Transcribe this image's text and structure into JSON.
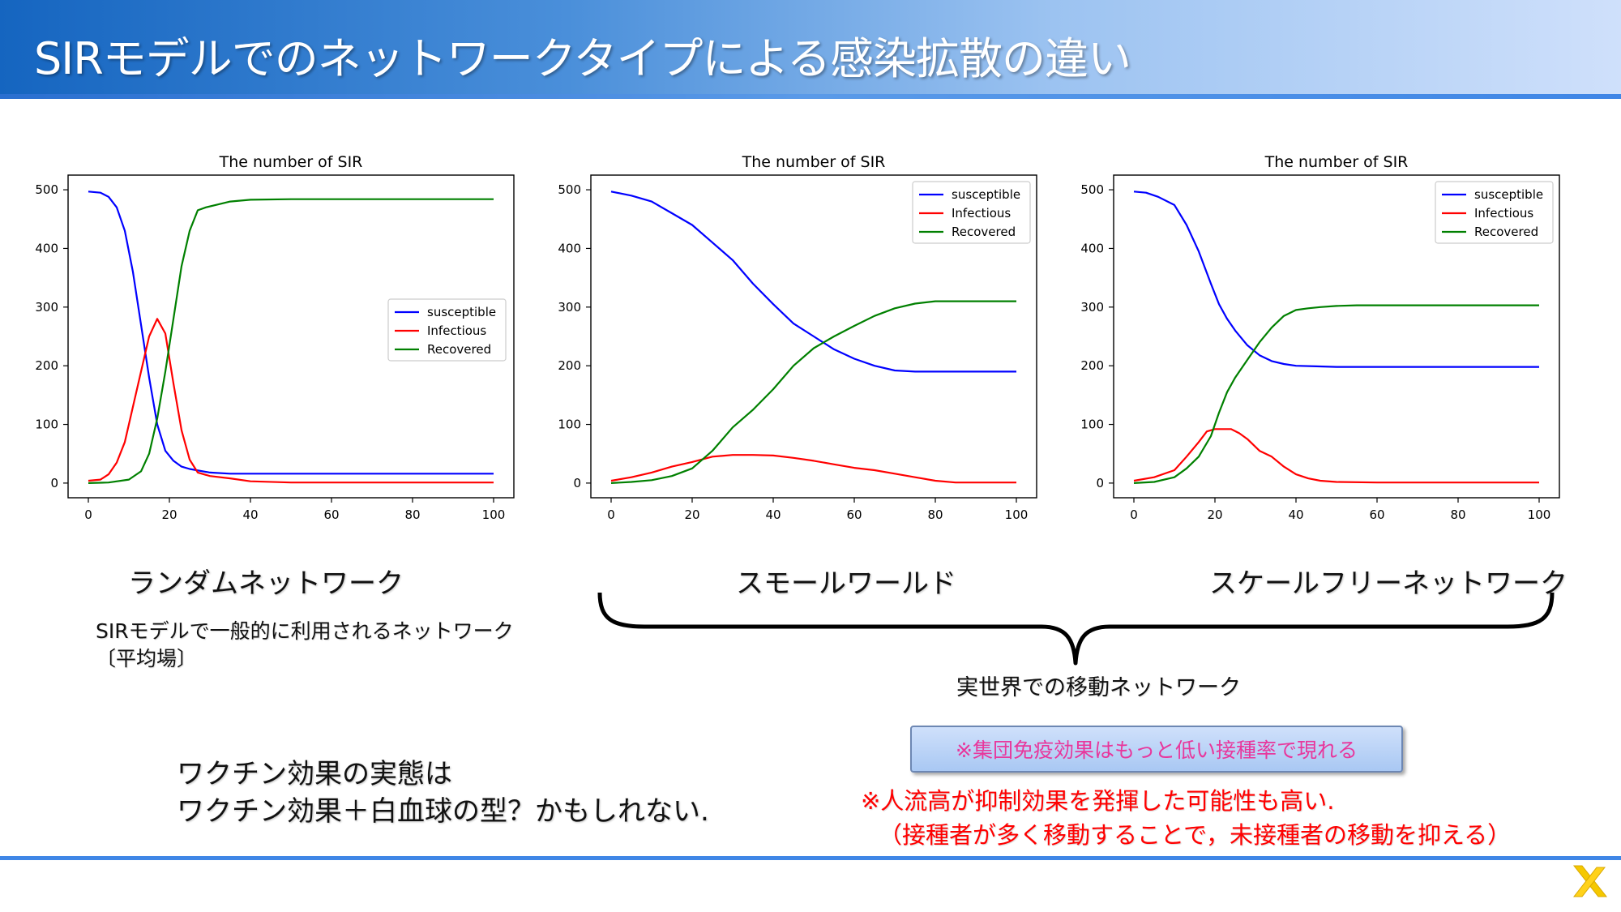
{
  "title": "SIRモデルでのネットワークタイプによる感染拡散の違い",
  "labels": {
    "random": "ランダムネットワーク",
    "small_world": "スモールワールド",
    "scale_free": "スケールフリーネットワーク"
  },
  "random_desc": [
    "SIRモデルで一般的に利用されるネットワーク",
    "〔平均場〕"
  ],
  "mobility_label": "実世界での移動ネットワーク",
  "herd_note": "※集団免疫効果はもっと低い接種率で現れる",
  "vaccine_text": [
    "ワクチン効果の実態は",
    "ワクチン効果＋白血球の型？かもしれない."
  ],
  "red_note": [
    "※人流高が抑制効果を発揮した可能性も高い.",
    "（接種者が多く移動することで，未接種者の移動を抑える）"
  ],
  "colors": {
    "susceptible": "#0000ff",
    "infectious": "#ff0000",
    "recovered": "#008000",
    "accent_red": "#ff0000",
    "accent_pink": "#e8379c"
  },
  "icons": {
    "logo": "yellow-x-logo"
  },
  "chart_data": [
    {
      "type": "line",
      "title": "The number of SIR",
      "xlim": [
        0,
        100
      ],
      "ylim": [
        0,
        500
      ],
      "xticks": [
        0,
        20,
        40,
        60,
        80,
        100
      ],
      "yticks": [
        0,
        100,
        200,
        300,
        400,
        500
      ],
      "legend": "center-right",
      "series": [
        {
          "name": "susceptible",
          "x": [
            0,
            3,
            5,
            7,
            9,
            11,
            13,
            15,
            17,
            19,
            21,
            23,
            25,
            30,
            35,
            40,
            50,
            70,
            100
          ],
          "y": [
            497,
            495,
            488,
            470,
            430,
            360,
            270,
            180,
            100,
            55,
            38,
            28,
            24,
            18,
            16,
            16,
            16,
            16,
            16
          ]
        },
        {
          "name": "Infectious",
          "x": [
            0,
            3,
            5,
            7,
            9,
            11,
            13,
            15,
            17,
            19,
            21,
            23,
            25,
            27,
            30,
            35,
            40,
            50,
            70,
            100
          ],
          "y": [
            4,
            6,
            15,
            35,
            70,
            130,
            190,
            250,
            280,
            255,
            170,
            90,
            40,
            18,
            12,
            8,
            3,
            1,
            1,
            1
          ]
        },
        {
          "name": "Recovered",
          "x": [
            0,
            5,
            10,
            13,
            15,
            17,
            19,
            21,
            23,
            25,
            27,
            29,
            32,
            35,
            40,
            50,
            70,
            100
          ],
          "y": [
            0,
            1,
            6,
            20,
            50,
            110,
            190,
            280,
            370,
            430,
            465,
            470,
            475,
            480,
            483,
            484,
            484,
            484
          ]
        }
      ]
    },
    {
      "type": "line",
      "title": "The number of SIR",
      "xlim": [
        0,
        100
      ],
      "ylim": [
        0,
        500
      ],
      "xticks": [
        0,
        20,
        40,
        60,
        80,
        100
      ],
      "yticks": [
        0,
        100,
        200,
        300,
        400,
        500
      ],
      "legend": "top-right",
      "series": [
        {
          "name": "susceptible",
          "x": [
            0,
            5,
            10,
            15,
            20,
            25,
            30,
            35,
            40,
            45,
            50,
            55,
            60,
            65,
            70,
            75,
            100
          ],
          "y": [
            497,
            490,
            480,
            460,
            440,
            410,
            380,
            340,
            305,
            272,
            250,
            228,
            212,
            200,
            192,
            190,
            190
          ]
        },
        {
          "name": "Infectious",
          "x": [
            0,
            5,
            10,
            15,
            20,
            25,
            30,
            35,
            40,
            45,
            50,
            55,
            60,
            65,
            70,
            75,
            80,
            85,
            90,
            100
          ],
          "y": [
            4,
            10,
            18,
            28,
            36,
            45,
            48,
            48,
            47,
            43,
            38,
            32,
            26,
            22,
            16,
            10,
            4,
            1,
            1,
            1
          ]
        },
        {
          "name": "Recovered",
          "x": [
            0,
            5,
            10,
            15,
            20,
            25,
            30,
            35,
            40,
            45,
            50,
            55,
            60,
            65,
            70,
            75,
            80,
            85,
            90,
            100
          ],
          "y": [
            0,
            2,
            5,
            12,
            25,
            55,
            95,
            125,
            160,
            200,
            230,
            250,
            268,
            285,
            298,
            306,
            310,
            310,
            310,
            310
          ]
        }
      ]
    },
    {
      "type": "line",
      "title": "The number of SIR",
      "xlim": [
        0,
        100
      ],
      "ylim": [
        0,
        500
      ],
      "xticks": [
        0,
        20,
        40,
        60,
        80,
        100
      ],
      "yticks": [
        0,
        100,
        200,
        300,
        400,
        500
      ],
      "legend": "top-right",
      "series": [
        {
          "name": "susceptible",
          "x": [
            0,
            3,
            6,
            10,
            13,
            16,
            19,
            21,
            23,
            25,
            28,
            31,
            34,
            37,
            40,
            45,
            50,
            60,
            100
          ],
          "y": [
            497,
            495,
            488,
            474,
            440,
            395,
            340,
            305,
            280,
            260,
            235,
            218,
            208,
            203,
            200,
            199,
            198,
            198,
            198
          ]
        },
        {
          "name": "Infectious",
          "x": [
            0,
            5,
            10,
            13,
            16,
            18,
            20,
            22,
            24,
            26,
            28,
            31,
            34,
            37,
            40,
            43,
            46,
            50,
            60,
            100
          ],
          "y": [
            4,
            10,
            22,
            45,
            70,
            88,
            92,
            92,
            92,
            85,
            75,
            55,
            45,
            28,
            15,
            8,
            4,
            2,
            1,
            1
          ]
        },
        {
          "name": "Recovered",
          "x": [
            0,
            5,
            10,
            13,
            16,
            19,
            21,
            23,
            25,
            28,
            31,
            34,
            37,
            40,
            43,
            46,
            50,
            55,
            60,
            100
          ],
          "y": [
            0,
            2,
            10,
            25,
            45,
            80,
            120,
            155,
            180,
            210,
            240,
            265,
            285,
            295,
            298,
            300,
            302,
            303,
            303,
            303
          ]
        }
      ]
    }
  ]
}
